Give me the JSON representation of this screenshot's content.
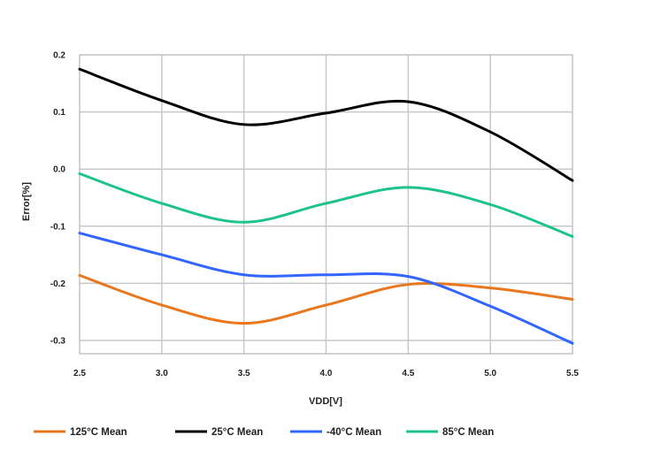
{
  "chart_data": {
    "type": "line",
    "title": "",
    "xlabel": "VDD[V]",
    "ylabel": "Error[%]",
    "xlim": [
      2.5,
      5.5
    ],
    "ylim": [
      -0.33,
      0.2
    ],
    "x_ticks": [
      2.5,
      3.0,
      3.5,
      4.0,
      4.5,
      5.0,
      5.5
    ],
    "x_tick_labels": [
      "2.5",
      "3.0",
      "3.5",
      "4.0",
      "4.5",
      "5.0",
      "5.5"
    ],
    "y_ticks": [
      0.2,
      0.1,
      0.0,
      -0.1,
      -0.2,
      -0.3
    ],
    "y_tick_labels": [
      "0.2",
      "0.1",
      "0.0",
      "-0.1",
      "-0.2",
      "-0.3"
    ],
    "grid": true,
    "legend_position": "bottom",
    "x": [
      2.5,
      3.0,
      3.5,
      4.0,
      4.5,
      5.0,
      5.5
    ],
    "series": [
      {
        "name": "125°C Mean",
        "color": "#E8771E",
        "values": [
          -0.186,
          -0.238,
          -0.27,
          -0.238,
          -0.202,
          -0.208,
          -0.228
        ]
      },
      {
        "name": "25°C Mean",
        "color": "#000000",
        "values": [
          0.175,
          0.12,
          0.078,
          0.098,
          0.118,
          0.065,
          -0.02
        ]
      },
      {
        "name": "-40°C Mean",
        "color": "#3366FF",
        "values": [
          -0.112,
          -0.15,
          -0.185,
          -0.185,
          -0.188,
          -0.24,
          -0.305
        ]
      },
      {
        "name": "85°C Mean",
        "color": "#1DC28C",
        "values": [
          -0.008,
          -0.06,
          -0.093,
          -0.06,
          -0.032,
          -0.062,
          -0.118
        ]
      }
    ]
  }
}
